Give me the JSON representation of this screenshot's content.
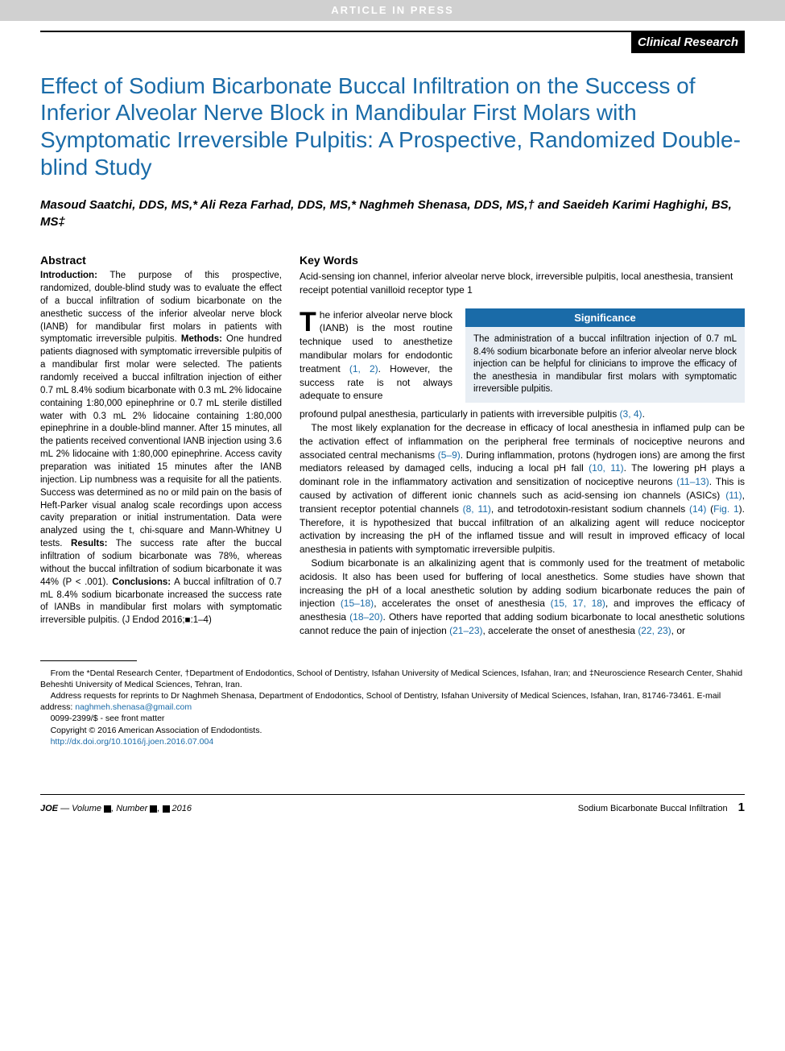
{
  "banner": "ARTICLE IN PRESS",
  "category": "Clinical Research",
  "title": "Effect of Sodium Bicarbonate Buccal Infiltration on the Success of Inferior Alveolar Nerve Block in Mandibular First Molars with Symptomatic Irreversible Pulpitis: A Prospective, Randomized Double-blind Study",
  "authors": "Masoud Saatchi, DDS, MS,* Ali Reza Farhad, DDS, MS,* Naghmeh Shenasa, DDS, MS,† and Saeideh Karimi Haghighi, BS, MS‡",
  "abstract": {
    "heading": "Abstract",
    "intro_label": "Introduction:",
    "intro_text": " The purpose of this prospective, randomized, double-blind study was to evaluate the effect of a buccal infiltration of sodium bicarbonate on the anesthetic success of the inferior alveolar nerve block (IANB) for mandibular first molars in patients with symptomatic irreversible pulpitis. ",
    "methods_label": "Methods:",
    "methods_text": " One hundred patients diagnosed with symptomatic irreversible pulpitis of a mandibular first molar were selected. The patients randomly received a buccal infiltration injection of either 0.7 mL 8.4% sodium bicarbonate with 0.3 mL 2% lidocaine containing 1:80,000 epinephrine or 0.7 mL sterile distilled water with 0.3 mL 2% lidocaine containing 1:80,000 epinephrine in a double-blind manner. After 15 minutes, all the patients received conventional IANB injection using 3.6 mL 2% lidocaine with 1:80,000 epinephrine. Access cavity preparation was initiated 15 minutes after the IANB injection. Lip numbness was a requisite for all the patients. Success was determined as no or mild pain on the basis of Heft-Parker visual analog scale recordings upon access cavity preparation or initial instrumentation. Data were analyzed using the t, chi-square and Mann-Whitney U tests. ",
    "results_label": "Results:",
    "results_text": " The success rate after the buccal infiltration of sodium bicarbonate was 78%, whereas without the buccal infiltration of sodium bicarbonate it was 44% (P < .001). ",
    "concl_label": "Conclusions:",
    "concl_text": " A buccal infiltration of 0.7 mL 8.4% sodium bicarbonate increased the success rate of IANBs in mandibular first molars with symptomatic irreversible pulpitis. (J Endod 2016;■:1–4)"
  },
  "keywords": {
    "heading": "Key Words",
    "text": "Acid-sensing ion channel, inferior alveolar nerve block, irreversible pulpitis, local anesthesia, transient receipt potential vanilloid receptor type 1"
  },
  "significance": {
    "heading": "Significance",
    "text": "The administration of a buccal infiltration injection of 0.7 mL 8.4% sodium bicarbonate before an inferior alveolar nerve block injection can be helpful for clinicians to improve the efficacy of the anesthesia in mandibular first molars with symptomatic irreversible pulpitis."
  },
  "intro_first": "he inferior alveolar nerve block (IANB) is the most routine technique used to anesthetize mandibular molars for endodontic treatment ",
  "intro_ref1": "(1, 2)",
  "intro_tail": ". However, the success rate is not always adequate to ensure",
  "body": {
    "p1a": "profound pulpal anesthesia, particularly in patients with irreversible pulpitis ",
    "p1r": "(3, 4)",
    "p1b": ".",
    "p2a": "The most likely explanation for the decrease in efficacy of local anesthesia in inflamed pulp can be the activation effect of inflammation on the peripheral free terminals of nociceptive neurons and associated central mechanisms ",
    "p2r1": "(5–9)",
    "p2b": ". During inflammation, protons (hydrogen ions) are among the first mediators released by damaged cells, inducing a local pH fall ",
    "p2r2": "(10, 11)",
    "p2c": ". The lowering pH plays a dominant role in the inflammatory activation and sensitization of nociceptive neurons ",
    "p2r3": "(11–13)",
    "p2d": ". This is caused by activation of different ionic channels such as acid-sensing ion channels (ASICs) ",
    "p2r4": "(11)",
    "p2e": ", transient receptor potential channels ",
    "p2r5": "(8, 11)",
    "p2f": ", and tetrodotoxin-resistant sodium channels ",
    "p2r6": "(14)",
    "p2g": " (",
    "p2r7": "Fig. 1",
    "p2h": "). Therefore, it is hypothesized that buccal infiltration of an alkalizing agent will reduce nociceptor activation by increasing the pH of the inflamed tissue and will result in improved efficacy of local anesthesia in patients with symptomatic irreversible pulpitis.",
    "p3a": "Sodium bicarbonate is an alkalinizing agent that is commonly used for the treatment of metabolic acidosis. It also has been used for buffering of local anesthetics. Some studies have shown that increasing the pH of a local anesthetic solution by adding sodium bicarbonate reduces the pain of injection ",
    "p3r1": "(15–18)",
    "p3b": ", accelerates the onset of anesthesia ",
    "p3r2": "(15, 17, 18)",
    "p3c": ", and improves the efficacy of anesthesia ",
    "p3r3": "(18–20)",
    "p3d": ". Others have reported that adding sodium bicarbonate to local anesthetic solutions cannot reduce the pain of injection ",
    "p3r4": "(21–23)",
    "p3e": ", accelerate the onset of anesthesia ",
    "p3r5": "(22, 23)",
    "p3f": ", or"
  },
  "footnotes": {
    "affil": "From the *Dental Research Center, †Department of Endodontics, School of Dentistry, Isfahan University of Medical Sciences, Isfahan, Iran; and ‡Neuroscience Research Center, Shahid Beheshti University of Medical Sciences, Tehran, Iran.",
    "corr_pre": "Address requests for reprints to Dr Naghmeh Shenasa, Department of Endodontics, School of Dentistry, Isfahan University of Medical Sciences, Isfahan, Iran, 81746-73461. E-mail address: ",
    "corr_email": "naghmeh.shenasa@gmail.com",
    "issn": "0099-2399/$ - see front matter",
    "copyright": "Copyright © 2016 American Association of Endodontists.",
    "doi": "http://dx.doi.org/10.1016/j.joen.2016.07.004"
  },
  "footer": {
    "left_pre": "JOE",
    "left_mid": " — Volume ",
    "left_num": ", Number ",
    "left_year": " 2016",
    "right_label": "Sodium Bicarbonate Buccal Infiltration",
    "page": "1"
  },
  "colors": {
    "accent_blue": "#1a6ba8",
    "banner_gray": "#d0d0d0",
    "sig_bg": "#e8eef4"
  }
}
